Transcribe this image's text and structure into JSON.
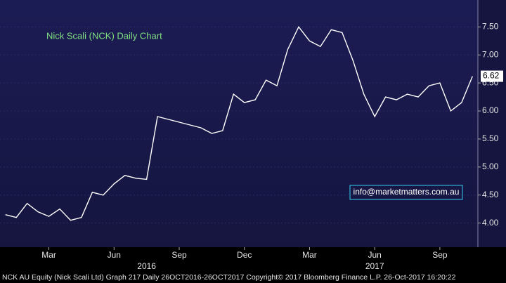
{
  "chart_data": {
    "type": "line",
    "title": "Nick Scali (NCK) Daily Chart",
    "annotation": "info@marketmatters.com.au",
    "footer": "NCK AU Equity (Nick Scali Ltd) Graph 217  Daily 26OCT2016-26OCT2017  Copyright© 2017 Bloomberg Finance L.P.   26-Oct-2017 16:20:22",
    "categories": [
      null,
      null,
      null,
      null,
      "Mar",
      null,
      null,
      null,
      null,
      null,
      "Jun",
      null,
      null,
      null,
      null,
      null,
      "Sep",
      null,
      null,
      null,
      null,
      null,
      "Dec",
      null,
      null,
      null,
      null,
      null,
      "Mar",
      null,
      null,
      null,
      null,
      null,
      "Jun",
      null,
      null,
      null,
      null,
      null,
      "Sep",
      null,
      null,
      null
    ],
    "year_labels": [
      "2016",
      "2017"
    ],
    "series": [
      {
        "name": "NCK AU Equity",
        "color": "#ffffff",
        "values": [
          4.15,
          4.1,
          4.35,
          4.2,
          4.12,
          4.25,
          4.05,
          4.1,
          4.55,
          4.5,
          4.7,
          4.85,
          4.8,
          4.78,
          5.9,
          5.85,
          5.8,
          5.75,
          5.7,
          5.6,
          5.65,
          6.3,
          6.15,
          6.2,
          6.55,
          6.45,
          7.1,
          7.5,
          7.25,
          7.15,
          7.45,
          7.4,
          6.9,
          6.3,
          5.9,
          6.25,
          6.2,
          6.3,
          6.25,
          6.45,
          6.5,
          6.0,
          6.15,
          6.62
        ]
      }
    ],
    "ylim": [
      3.57,
      7.98
    ],
    "yticks": [
      {
        "value": 4,
        "label": "4.00"
      },
      {
        "value": 4.5,
        "label": "4.50"
      },
      {
        "value": 5,
        "label": "5.00"
      },
      {
        "value": 5.5,
        "label": "5.50"
      },
      {
        "value": 6,
        "label": "6.00"
      },
      {
        "value": 6.5,
        "label": "6.50"
      },
      {
        "value": 7,
        "label": "7.00"
      },
      {
        "value": 7.5,
        "label": "7.50"
      }
    ],
    "grid": true
  }
}
